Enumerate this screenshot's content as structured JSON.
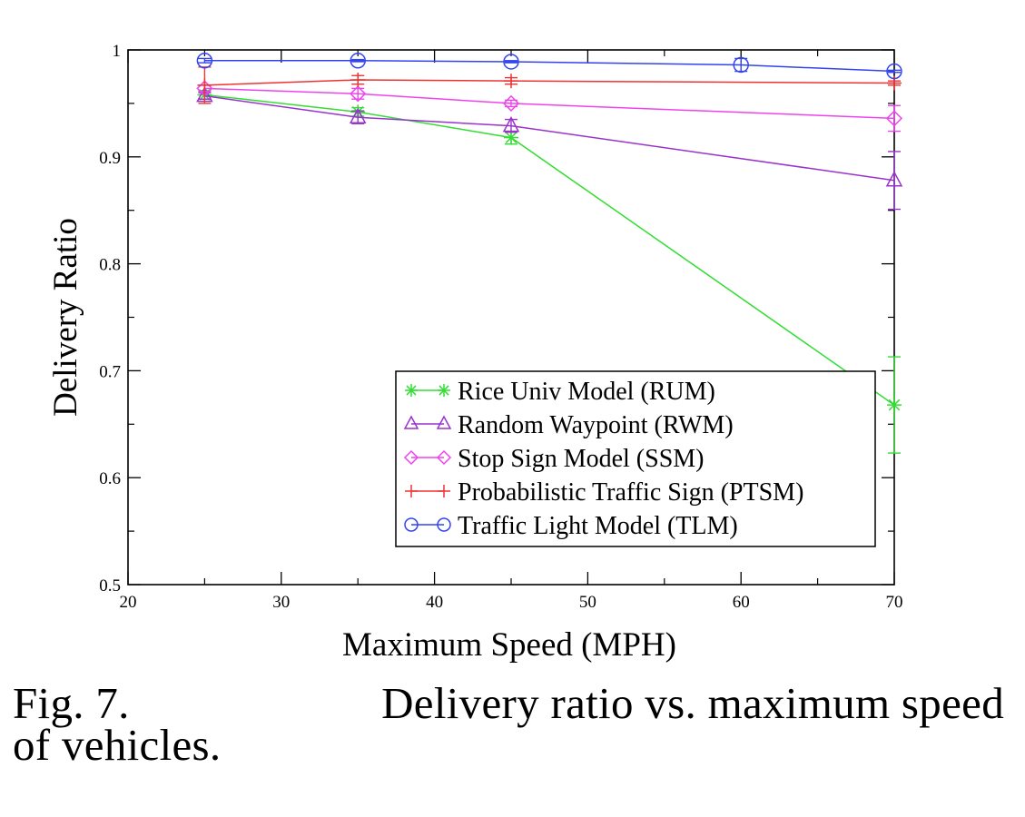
{
  "chart_data": {
    "type": "line",
    "title": "",
    "xlabel": "Maximum Speed (MPH)",
    "ylabel": "Delivery Ratio",
    "xlim": [
      20,
      70
    ],
    "ylim": [
      0.5,
      1.0
    ],
    "xticks": [
      20,
      30,
      40,
      50,
      60,
      70
    ],
    "xtick_labels": [
      "20",
      "30",
      "40",
      "50",
      "60",
      "70"
    ],
    "yticks": [
      0.5,
      0.6,
      0.7,
      0.8,
      0.9,
      1.0
    ],
    "ytick_labels": [
      "0.5",
      "0.6",
      "0.7",
      "0.8",
      "0.9",
      "1"
    ],
    "grid": false,
    "legend_position": "bottom-right",
    "series": [
      {
        "name": "Rice Univ Model (RUM)",
        "color": "#33dd33",
        "marker": "asterisk",
        "x": [
          25,
          35,
          45,
          70
        ],
        "y": [
          0.958,
          0.942,
          0.918,
          0.668
        ],
        "err": [
          0.004,
          0.004,
          0.006,
          0.045
        ]
      },
      {
        "name": "Random Waypoint (RWM)",
        "color": "#9933cc",
        "marker": "triangle",
        "x": [
          25,
          35,
          45,
          70
        ],
        "y": [
          0.957,
          0.937,
          0.929,
          0.878
        ],
        "err": [
          0.003,
          0.006,
          0.006,
          0.027
        ]
      },
      {
        "name": "Stop Sign Model (SSM)",
        "color": "#ee44ee",
        "marker": "diamond",
        "x": [
          25,
          35,
          45,
          70
        ],
        "y": [
          0.964,
          0.959,
          0.95,
          0.936
        ],
        "err": [
          0.003,
          0.005,
          0.003,
          0.012
        ]
      },
      {
        "name": "Probabilistic Traffic Sign (PTSM)",
        "color": "#ee3333",
        "marker": "plus",
        "x": [
          25,
          35,
          45,
          70
        ],
        "y": [
          0.967,
          0.972,
          0.971,
          0.969
        ],
        "err": [
          0.017,
          0.004,
          0.003,
          0.002
        ]
      },
      {
        "name": "Traffic Light Model (TLM)",
        "color": "#3344ee",
        "marker": "circle",
        "x": [
          25,
          35,
          45,
          60,
          70
        ],
        "y": [
          0.99,
          0.99,
          0.989,
          0.986,
          0.98
        ],
        "err": [
          0.002,
          0.001,
          0.001,
          0.006,
          0.001
        ]
      }
    ]
  },
  "caption": {
    "label": "Fig. 7.",
    "text_line1": "Delivery ratio vs. maximum speed",
    "text_line2": "of vehicles."
  }
}
